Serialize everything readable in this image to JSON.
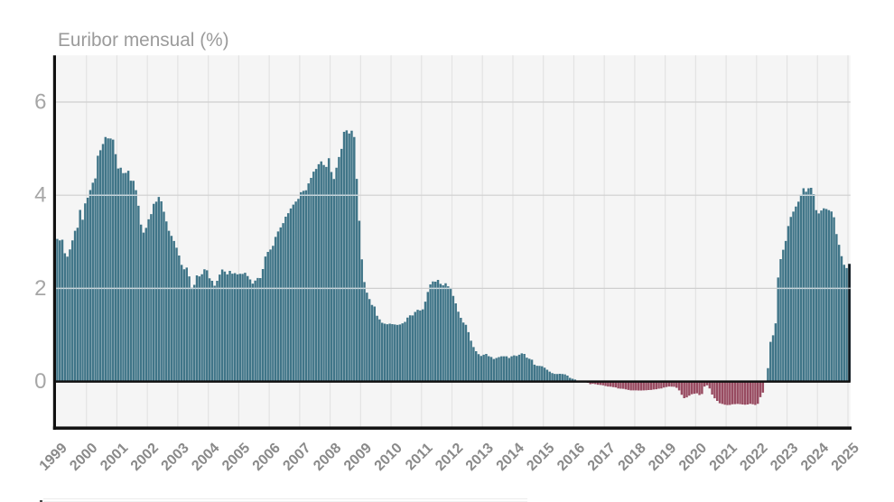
{
  "title": "Euribor mensual (%)",
  "chart_data": {
    "type": "bar",
    "title": "Euribor mensual (%)",
    "x_start": "1999-01",
    "x_end": "2025-01",
    "frequency": "monthly",
    "x_tick_labels": [
      "1999",
      "2000",
      "2001",
      "2002",
      "2003",
      "2004",
      "2005",
      "2006",
      "2007",
      "2008",
      "2009",
      "2010",
      "2011",
      "2012",
      "2013",
      "2014",
      "2015",
      "2016",
      "2017",
      "2018",
      "2019",
      "2020",
      "2021",
      "2022",
      "2023",
      "2024",
      "2025"
    ],
    "y_tick_labels": [
      "0",
      "2",
      "4",
      "6"
    ],
    "y_ticks": [
      0,
      2,
      4,
      6
    ],
    "ylim": [
      -1,
      7
    ],
    "grid": "on",
    "legend": "none",
    "xlabel": "",
    "ylabel": "",
    "values": [
      3.062,
      3.031,
      3.045,
      2.755,
      2.682,
      2.836,
      3.03,
      3.237,
      3.302,
      3.684,
      3.474,
      3.825,
      3.946,
      4.111,
      4.267,
      4.36,
      4.848,
      4.965,
      5.098,
      5.248,
      5.219,
      5.218,
      5.193,
      4.881,
      4.574,
      4.591,
      4.474,
      4.479,
      4.524,
      4.311,
      4.308,
      4.108,
      3.774,
      3.369,
      3.198,
      3.298,
      3.483,
      3.594,
      3.816,
      3.86,
      3.963,
      3.869,
      3.645,
      3.438,
      3.236,
      3.126,
      3.017,
      2.872,
      2.706,
      2.504,
      2.411,
      2.447,
      2.258,
      2.014,
      2.076,
      2.279,
      2.257,
      2.303,
      2.41,
      2.389,
      2.216,
      2.163,
      2.055,
      2.163,
      2.297,
      2.404,
      2.361,
      2.302,
      2.377,
      2.316,
      2.328,
      2.301,
      2.312,
      2.31,
      2.335,
      2.265,
      2.193,
      2.103,
      2.168,
      2.223,
      2.22,
      2.414,
      2.684,
      2.783,
      2.833,
      2.914,
      3.105,
      3.221,
      3.308,
      3.401,
      3.539,
      3.615,
      3.715,
      3.799,
      3.864,
      3.921,
      4.064,
      4.094,
      4.106,
      4.253,
      4.373,
      4.505,
      4.564,
      4.666,
      4.725,
      4.647,
      4.607,
      4.793,
      4.498,
      4.349,
      4.59,
      4.82,
      4.994,
      5.361,
      5.393,
      5.323,
      5.384,
      5.248,
      4.35,
      3.452,
      2.622,
      2.135,
      1.909,
      1.771,
      1.644,
      1.61,
      1.412,
      1.334,
      1.261,
      1.243,
      1.231,
      1.242,
      1.232,
      1.225,
      1.215,
      1.225,
      1.249,
      1.281,
      1.373,
      1.421,
      1.42,
      1.495,
      1.541,
      1.526,
      1.55,
      1.714,
      1.924,
      2.086,
      2.147,
      2.144,
      2.183,
      2.097,
      2.067,
      2.11,
      2.044,
      2.004,
      1.837,
      1.678,
      1.499,
      1.368,
      1.266,
      1.219,
      1.061,
      0.877,
      0.74,
      0.65,
      0.588,
      0.549,
      0.575,
      0.594,
      0.545,
      0.528,
      0.484,
      0.507,
      0.525,
      0.542,
      0.543,
      0.541,
      0.506,
      0.543,
      0.562,
      0.549,
      0.577,
      0.604,
      0.592,
      0.513,
      0.488,
      0.469,
      0.362,
      0.338,
      0.335,
      0.329,
      0.298,
      0.255,
      0.212,
      0.18,
      0.165,
      0.163,
      0.167,
      0.161,
      0.154,
      0.128,
      0.079,
      0.059,
      0.042,
      -0.008,
      -0.012,
      -0.01,
      -0.013,
      -0.028,
      -0.056,
      -0.048,
      -0.057,
      -0.069,
      -0.074,
      -0.08,
      -0.095,
      -0.106,
      -0.11,
      -0.119,
      -0.127,
      -0.149,
      -0.154,
      -0.156,
      -0.168,
      -0.18,
      -0.189,
      -0.19,
      -0.189,
      -0.191,
      -0.191,
      -0.19,
      -0.188,
      -0.181,
      -0.18,
      -0.169,
      -0.166,
      -0.154,
      -0.147,
      -0.129,
      -0.116,
      -0.108,
      -0.109,
      -0.112,
      -0.134,
      -0.19,
      -0.283,
      -0.356,
      -0.339,
      -0.304,
      -0.272,
      -0.261,
      -0.253,
      -0.288,
      -0.266,
      -0.108,
      -0.081,
      -0.147,
      -0.279,
      -0.359,
      -0.415,
      -0.466,
      -0.481,
      -0.497,
      -0.505,
      -0.501,
      -0.487,
      -0.484,
      -0.481,
      -0.484,
      -0.491,
      -0.498,
      -0.492,
      -0.477,
      -0.487,
      -0.502,
      -0.477,
      -0.335,
      -0.237,
      0.013,
      0.287,
      0.852,
      0.992,
      1.249,
      2.233,
      2.629,
      2.828,
      3.018,
      3.337,
      3.534,
      3.647,
      3.757,
      3.862,
      4.007,
      4.149,
      4.073,
      4.149,
      4.16,
      4.022,
      3.679,
      3.609,
      3.671,
      3.718,
      3.703,
      3.68,
      3.65,
      3.526,
      3.166,
      2.936,
      2.691,
      2.506,
      2.436,
      2.525
    ],
    "colors": {
      "positive_bar": "#407588",
      "negative_bar": "#984b61",
      "last_bar_highlight": "#111c24",
      "plot_background": "#f5f5f5",
      "vertical_gridline": "#e3e3e3",
      "horizontal_gridline": "#cfcfcf",
      "gridline_over_bars": "rgba(255,255,255,0.72)",
      "axis_line": "#101010",
      "zero_line": "#101010",
      "title_text": "#9b9b9b",
      "y_tick_text": "#a6a6a6",
      "x_tick_text": "#8a8a8a"
    }
  },
  "footer_partial": {
    "description": "top edge of a cropped element below the chart",
    "text": ""
  }
}
